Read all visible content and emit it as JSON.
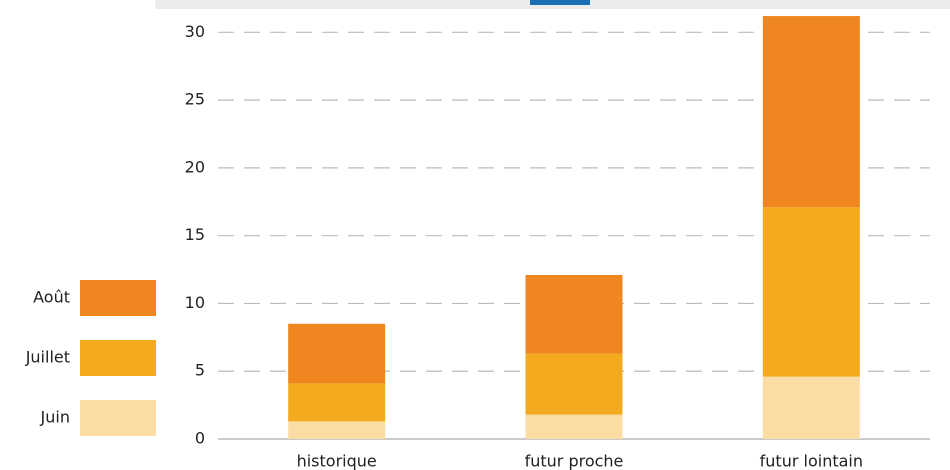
{
  "chart_data": {
    "type": "stacked_bar",
    "categories": [
      "historique",
      "futur proche",
      "futur lointain"
    ],
    "series": [
      {
        "name": "Juin",
        "color": "#fbdca5",
        "values": [
          1.3,
          1.8,
          4.6
        ]
      },
      {
        "name": "Juillet",
        "color": "#f4aa1f",
        "values": [
          2.8,
          4.5,
          12.5
        ]
      },
      {
        "name": "Août",
        "color": "#ef861f",
        "values": [
          4.4,
          5.8,
          14.1
        ]
      }
    ],
    "ylim": [
      0,
      31.5
    ],
    "yticks": [
      0,
      5,
      10,
      15,
      20,
      25,
      30
    ],
    "grid": true
  }
}
